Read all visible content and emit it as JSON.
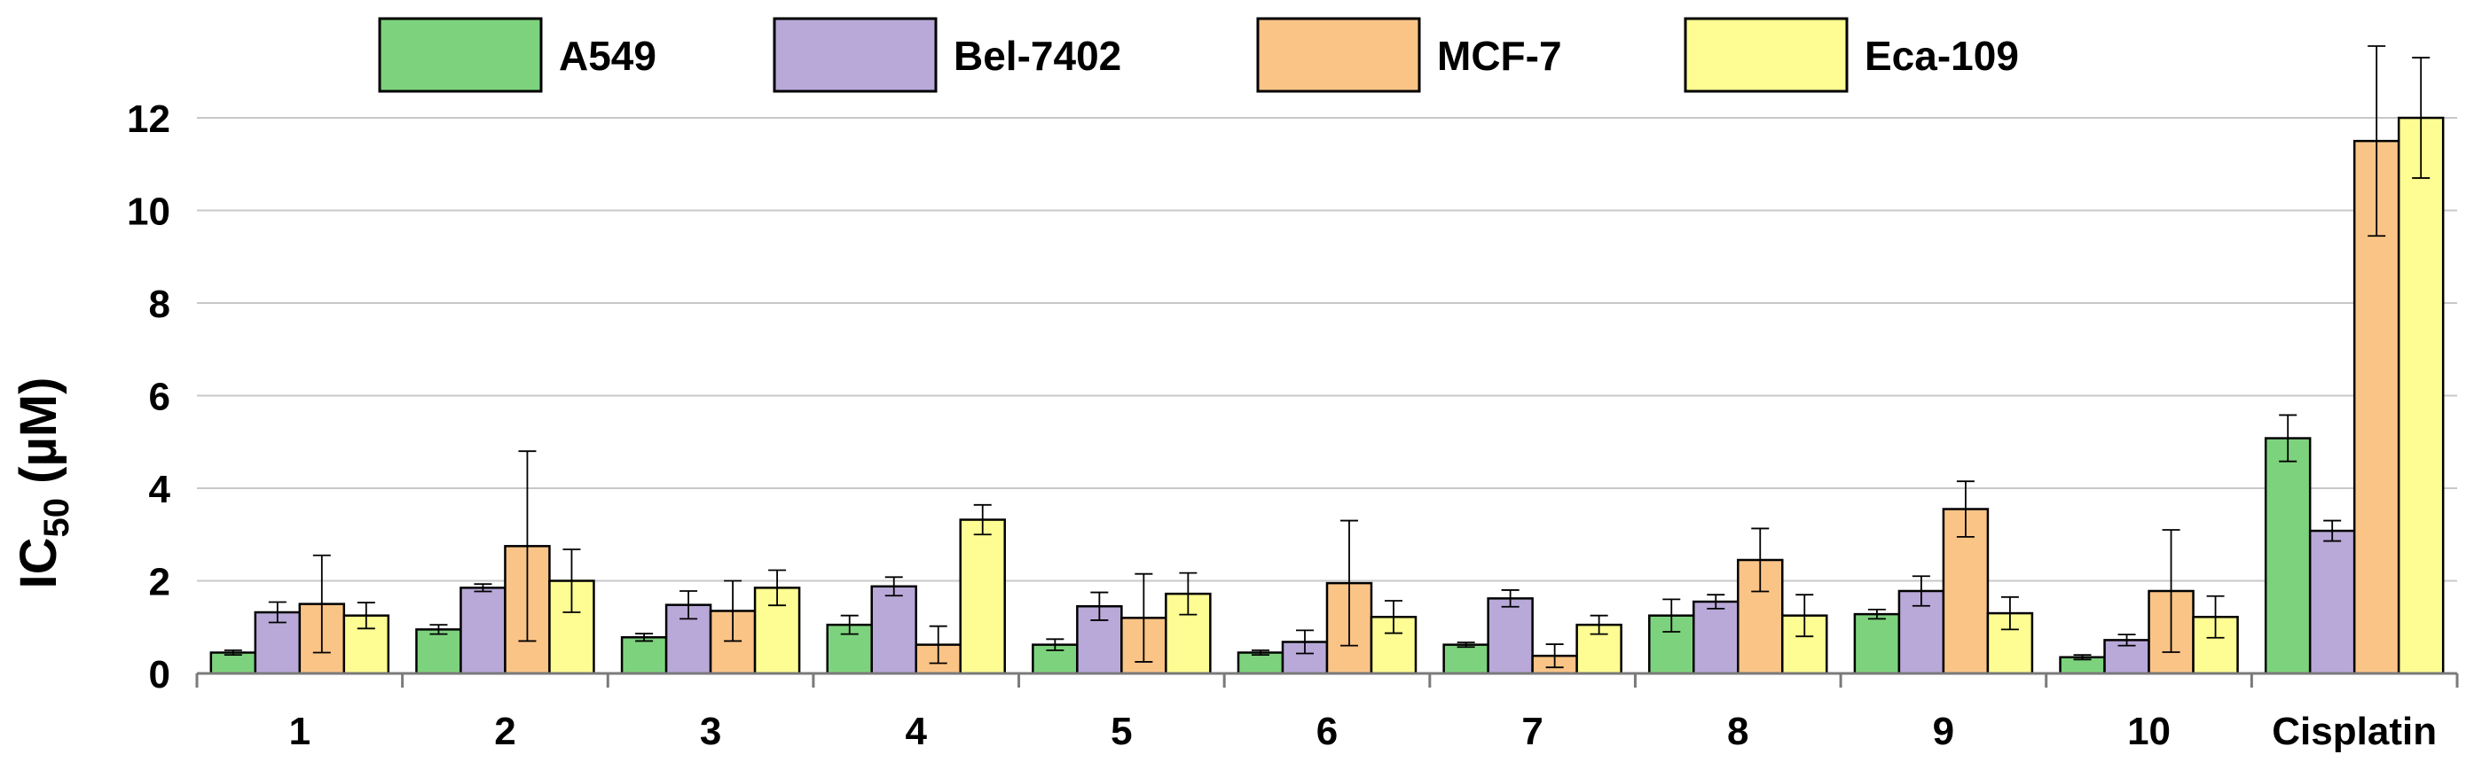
{
  "chart_data": {
    "type": "bar",
    "title": "",
    "xlabel": "",
    "ylabel": {
      "main": "IC",
      "subscript": "50",
      "unit": " (µM)"
    },
    "ylim": [
      0,
      14
    ],
    "yticks": [
      0,
      2,
      4,
      6,
      8,
      10,
      12
    ],
    "grid": true,
    "legend_position": "top",
    "categories": [
      "1",
      "2",
      "3",
      "4",
      "5",
      "6",
      "7",
      "8",
      "9",
      "10",
      "Cisplatin"
    ],
    "series": [
      {
        "name": "A549",
        "color": "#7dd37d",
        "values": [
          0.45,
          0.95,
          0.78,
          1.05,
          0.62,
          0.45,
          0.62,
          1.25,
          1.28,
          0.35,
          5.08
        ],
        "errors": [
          0.05,
          0.1,
          0.08,
          0.2,
          0.12,
          0.05,
          0.05,
          0.35,
          0.1,
          0.05,
          0.5
        ]
      },
      {
        "name": "Bel-7402",
        "color": "#b9a9d9",
        "values": [
          1.32,
          1.85,
          1.48,
          1.88,
          1.45,
          0.68,
          1.62,
          1.55,
          1.78,
          0.72,
          3.08
        ],
        "errors": [
          0.22,
          0.08,
          0.3,
          0.2,
          0.3,
          0.25,
          0.18,
          0.15,
          0.32,
          0.12,
          0.22
        ]
      },
      {
        "name": "MCF-7",
        "color": "#fbc487",
        "values": [
          1.5,
          2.75,
          1.35,
          0.62,
          1.2,
          1.95,
          0.38,
          2.45,
          3.55,
          1.78,
          11.5
        ],
        "errors": [
          1.05,
          2.05,
          0.65,
          0.4,
          0.95,
          1.35,
          0.25,
          0.68,
          0.6,
          1.32,
          2.05
        ]
      },
      {
        "name": "Eca-109",
        "color": "#fdfd93",
        "values": [
          1.25,
          2.0,
          1.85,
          3.32,
          1.72,
          1.22,
          1.05,
          1.25,
          1.3,
          1.22,
          12.0
        ],
        "errors": [
          0.28,
          0.68,
          0.38,
          0.32,
          0.45,
          0.35,
          0.2,
          0.45,
          0.35,
          0.45,
          1.3
        ]
      }
    ]
  }
}
